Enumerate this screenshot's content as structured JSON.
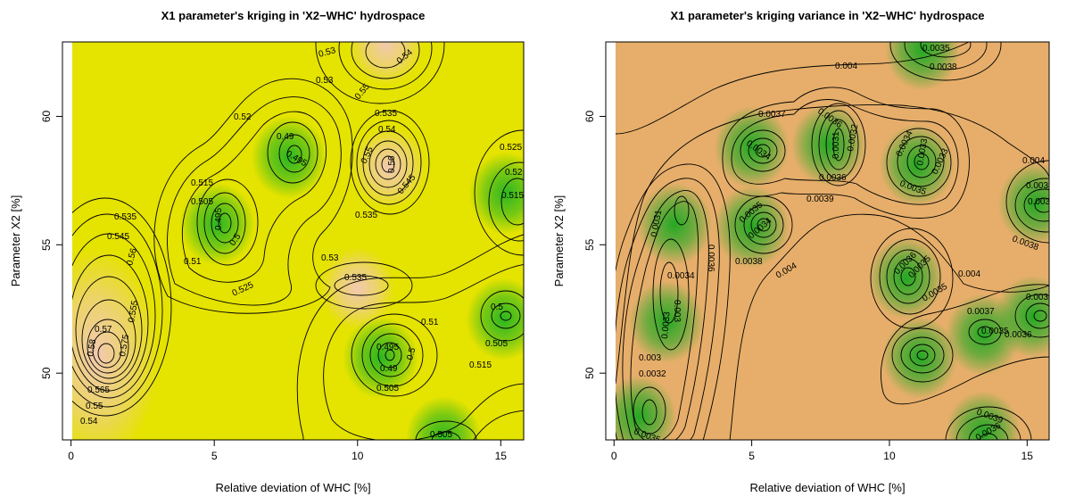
{
  "chart_data": [
    {
      "type": "heatmap",
      "title": "X1 parameter's kriging in 'X2−WHC' hydrospace",
      "xlabel": "Relative deviation of WHC [%]",
      "ylabel": "Parameter X2 [%]",
      "xticks": [
        "0",
        "5",
        "10",
        "15"
      ],
      "yticks": [
        "50",
        "55",
        "60"
      ],
      "xlim": [
        -0.3,
        15.8
      ],
      "ylim": [
        47.4,
        62.9
      ],
      "background_color": "#e5e300",
      "high_color": "#f2c8b8",
      "low_color": "#22b422",
      "contour_labels": [
        "0.535",
        "0.545",
        "0.56",
        "0.555",
        "0.57",
        "0.58",
        "0.575",
        "0.565",
        "0.55",
        "0.54",
        "0.53",
        "0.52",
        "0.515",
        "0.505",
        "0.51",
        "0.5",
        "0.495",
        "0.49",
        "0.525",
        "0.55",
        "0.56",
        "0.545",
        "0.53",
        "0.535",
        "0.54",
        "0.51",
        "0.505",
        "0.5",
        "0.515",
        "0.525",
        "0.52",
        "0.515",
        "0.495",
        "0.5",
        "0.505"
      ],
      "features": [
        {
          "kind": "peak",
          "x": 0.9,
          "y": 50.7,
          "value": 0.58
        },
        {
          "kind": "peak",
          "x": 11.1,
          "y": 58.0,
          "value": 0.56
        },
        {
          "kind": "peak",
          "x": 11.0,
          "y": 62.8,
          "value": 0.545
        },
        {
          "kind": "peak",
          "x": 10.0,
          "y": 53.3,
          "value": 0.535
        },
        {
          "kind": "pit",
          "x": 5.1,
          "y": 55.8,
          "value": 0.495
        },
        {
          "kind": "pit",
          "x": 7.6,
          "y": 58.4,
          "value": 0.495
        },
        {
          "kind": "pit",
          "x": 10.8,
          "y": 50.6,
          "value": 0.49
        },
        {
          "kind": "pit",
          "x": 15.1,
          "y": 52.1,
          "value": 0.5
        },
        {
          "kind": "pit",
          "x": 13.0,
          "y": 47.5,
          "value": 0.505
        },
        {
          "kind": "pit",
          "x": 15.2,
          "y": 57.0,
          "value": 0.515
        }
      ]
    },
    {
      "type": "heatmap",
      "title": "X1 parameter's kriging variance in 'X2−WHC' hydrospace",
      "xlabel": "Relative deviation of WHC [%]",
      "ylabel": "Parameter X2 [%]",
      "xticks": [
        "0",
        "5",
        "10",
        "15"
      ],
      "yticks": [
        "50",
        "55",
        "60"
      ],
      "xlim": [
        -0.3,
        15.8
      ],
      "ylim": [
        47.4,
        62.9
      ],
      "background_color": "#e6ae6a",
      "high_color": "#e6ae6a",
      "low_color": "#1aa820",
      "contour_labels": [
        "0.0035",
        "0.0038",
        "0.004",
        "0.0037",
        "0.0036",
        "0.0031",
        "0.0032",
        "0.0036",
        "0.0034",
        "0.0033",
        "0.0035",
        "0.0039",
        "0.0034",
        "0.0036",
        "0.0035",
        "0.0031",
        "0.0034",
        "0.0038",
        "0.0036",
        "0.0033",
        "0.003",
        "0.0034",
        "0.0033",
        "0.003",
        "0.0032",
        "0.0035",
        "0.0036",
        "0.0035",
        "0.0038",
        "0.0035",
        "0.004",
        "0.0037",
        "0.0035",
        "0.0036",
        "0.0039",
        "0.0039",
        "0.0036",
        "0.0004",
        "0.0038",
        "0.0038",
        "0.0039",
        "0.0038",
        "0.004"
      ],
      "features": [
        {
          "kind": "pit",
          "x": 0.9,
          "y": 48.3,
          "value": 0.0029
        },
        {
          "kind": "pit",
          "x": 1.9,
          "y": 52.0,
          "value": 0.003
        },
        {
          "kind": "pit",
          "x": 2.2,
          "y": 55.8,
          "value": 0.0031
        },
        {
          "kind": "pit",
          "x": 5.0,
          "y": 55.7,
          "value": 0.0034
        },
        {
          "kind": "pit",
          "x": 5.0,
          "y": 58.8,
          "value": 0.0034
        },
        {
          "kind": "pit",
          "x": 7.8,
          "y": 58.9,
          "value": 0.003
        },
        {
          "kind": "pit",
          "x": 11.0,
          "y": 58.1,
          "value": 0.003
        },
        {
          "kind": "pit",
          "x": 11.2,
          "y": 62.6,
          "value": 0.0035
        },
        {
          "kind": "pit",
          "x": 10.6,
          "y": 53.7,
          "value": 0.003
        },
        {
          "kind": "pit",
          "x": 11.1,
          "y": 50.6,
          "value": 0.0032
        },
        {
          "kind": "pit",
          "x": 13.4,
          "y": 51.5,
          "value": 0.0035
        },
        {
          "kind": "pit",
          "x": 15.2,
          "y": 52.2,
          "value": 0.0034
        },
        {
          "kind": "pit",
          "x": 15.3,
          "y": 56.6,
          "value": 0.0036
        },
        {
          "kind": "pit",
          "x": 13.4,
          "y": 47.7,
          "value": 0.0034
        }
      ]
    }
  ]
}
